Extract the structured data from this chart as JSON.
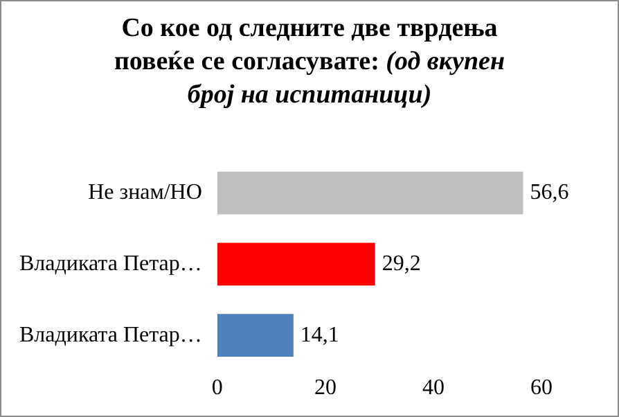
{
  "chart_data": {
    "type": "bar",
    "orientation": "horizontal",
    "title": "Со кое од следните две тврдења повеќе се согласувате:",
    "subtitle": "(од вкупен број на испитаници)",
    "categories": [
      "Не знам/НО",
      "Владиката Петар…",
      "Владиката Петар…"
    ],
    "values": [
      56.6,
      29.2,
      14.1
    ],
    "colors": [
      "#bfbfbf",
      "#ff0000",
      "#4f81bd"
    ],
    "value_labels": [
      "56,6",
      "29,2",
      "14,1"
    ],
    "xlim": [
      0,
      60
    ],
    "xticks": [
      0,
      20,
      40,
      60
    ],
    "grid": false,
    "legend": false
  }
}
